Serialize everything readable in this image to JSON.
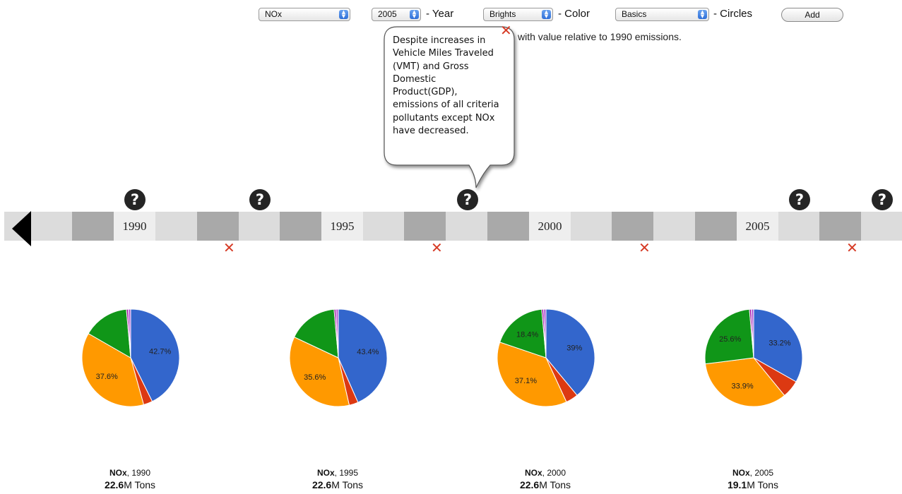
{
  "toolbar": {
    "pollutant_select": "NOx",
    "year_select": "2005",
    "year_label": "- Year",
    "color_select": "Brights",
    "color_label": "- Color",
    "circles_select": "Basics",
    "circles_label": "- Circles",
    "add_label": "Add"
  },
  "info_text": "with value relative to 1990 emissions.",
  "callout": {
    "lines": [
      "Despite increases in",
      "Vehicle Miles Traveled",
      "(VMT) and Gross",
      "Domestic",
      "Product(GDP),",
      "emissions of all criteria",
      "pollutants except NOx",
      "have decreased."
    ]
  },
  "icons": {
    "help": "?",
    "close": "✕"
  },
  "timeline": {
    "years": [
      "1990",
      "1995",
      "2000",
      "2005"
    ]
  },
  "colors": {
    "blue": "#3366cc",
    "red": "#dc3912",
    "orange": "#ff9900",
    "green": "#109618",
    "purple": "#990099",
    "violet": "#b35ad6"
  },
  "chart_data": [
    {
      "type": "pie",
      "caption_pollutant": "NOx",
      "caption_year": "1990",
      "total_value": "22.6",
      "total_unit": "M Tons",
      "series": [
        {
          "color": "#3366cc",
          "value": 42.7,
          "label": "42.7%"
        },
        {
          "color": "#dc3912",
          "value": 3.0,
          "label": ""
        },
        {
          "color": "#ff9900",
          "value": 37.6,
          "label": "37.6%"
        },
        {
          "color": "#109618",
          "value": 15.3,
          "label": ""
        },
        {
          "color": "#990099",
          "value": 0.6,
          "label": ""
        },
        {
          "color": "#b35ad6",
          "value": 0.8,
          "label": ""
        }
      ]
    },
    {
      "type": "pie",
      "caption_pollutant": "NOx",
      "caption_year": "1995",
      "total_value": "22.6",
      "total_unit": "M Tons",
      "series": [
        {
          "color": "#3366cc",
          "value": 43.4,
          "label": "43.4%"
        },
        {
          "color": "#dc3912",
          "value": 3.0,
          "label": ""
        },
        {
          "color": "#ff9900",
          "value": 35.6,
          "label": "35.6%"
        },
        {
          "color": "#109618",
          "value": 16.6,
          "label": ""
        },
        {
          "color": "#990099",
          "value": 0.6,
          "label": ""
        },
        {
          "color": "#b35ad6",
          "value": 0.8,
          "label": ""
        }
      ]
    },
    {
      "type": "pie",
      "caption_pollutant": "NOx",
      "caption_year": "2000",
      "total_value": "22.6",
      "total_unit": "M Tons",
      "series": [
        {
          "color": "#3366cc",
          "value": 39.0,
          "label": "39%"
        },
        {
          "color": "#dc3912",
          "value": 4.1,
          "label": ""
        },
        {
          "color": "#ff9900",
          "value": 37.1,
          "label": "37.1%"
        },
        {
          "color": "#109618",
          "value": 18.4,
          "label": "18.4%"
        },
        {
          "color": "#990099",
          "value": 0.6,
          "label": ""
        },
        {
          "color": "#b35ad6",
          "value": 0.8,
          "label": ""
        }
      ]
    },
    {
      "type": "pie",
      "caption_pollutant": "NOx",
      "caption_year": "2005",
      "total_value": "19.1",
      "total_unit": "M Tons",
      "series": [
        {
          "color": "#3366cc",
          "value": 33.2,
          "label": "33.2%"
        },
        {
          "color": "#dc3912",
          "value": 5.9,
          "label": ""
        },
        {
          "color": "#ff9900",
          "value": 33.9,
          "label": "33.9%"
        },
        {
          "color": "#109618",
          "value": 25.6,
          "label": "25.6%"
        },
        {
          "color": "#990099",
          "value": 0.6,
          "label": ""
        },
        {
          "color": "#b35ad6",
          "value": 0.8,
          "label": ""
        }
      ]
    }
  ]
}
